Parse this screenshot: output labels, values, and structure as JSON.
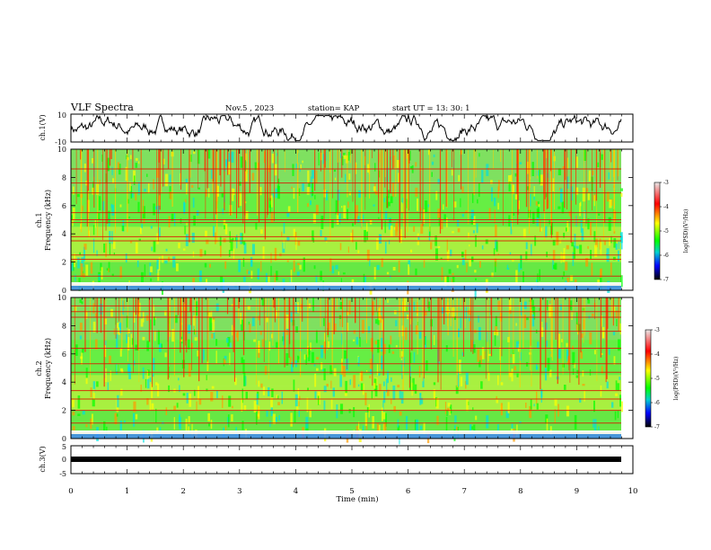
{
  "header": {
    "title": "VLF Spectra",
    "date": "Nov.5 , 2023",
    "station": "station= KAP",
    "start": "start UT = 13: 30: 1"
  },
  "colorbar": {
    "label": "log(PSD)(V²/Hz)",
    "ticks": [
      "-3",
      "-4",
      "-5",
      "-6",
      "-7"
    ],
    "colors": [
      "#e8e8e8",
      "#ff0000",
      "#ffff00",
      "#00ff00",
      "#00d0d0",
      "#0000ff",
      "#000000"
    ]
  },
  "chart_data": [
    {
      "type": "line",
      "name": "ch1-waveform",
      "ylabel": "ch.1(V)",
      "ylim": [
        -10,
        10
      ],
      "yticks": [
        "10",
        "-10"
      ],
      "xlim": [
        0,
        10
      ]
    },
    {
      "type": "heatmap",
      "name": "ch1-spectrogram",
      "ylabel": "Frequency (kHz)",
      "channel": "ch.1",
      "ylim": [
        0,
        10
      ],
      "xlim": [
        0,
        9.8
      ],
      "yticks": [
        "0",
        "2",
        "4",
        "6",
        "8",
        "10"
      ],
      "zlim": [
        -7,
        -3
      ],
      "lines_khz": [
        0.4,
        1.0,
        2.2,
        2.5,
        3.5,
        3.8,
        4.8,
        5.0,
        5.5,
        6.9,
        7.6,
        8.6
      ]
    },
    {
      "type": "heatmap",
      "name": "ch2-spectrogram",
      "ylabel": "Frequency (kHz)",
      "channel": "ch.2",
      "ylim": [
        0,
        10
      ],
      "xlim": [
        0,
        9.8
      ],
      "yticks": [
        "0",
        "2",
        "4",
        "6",
        "8",
        "10"
      ],
      "zlim": [
        -7,
        -3
      ],
      "lines_khz": [
        0.4,
        1.1,
        2.0,
        2.8,
        3.4,
        4.7,
        5.3,
        6.4,
        7.6,
        8.6,
        9.0,
        9.4
      ]
    },
    {
      "type": "line",
      "name": "ch3-waveform",
      "ylabel": "ch.3(V)",
      "ylim": [
        -5,
        5
      ],
      "yticks": [
        "5",
        "0",
        "-5"
      ],
      "xlim": [
        0,
        10
      ]
    }
  ],
  "xaxis": {
    "label": "Time (min)",
    "ticks": [
      "0",
      "1",
      "2",
      "3",
      "4",
      "5",
      "6",
      "7",
      "8",
      "9",
      "10"
    ]
  }
}
